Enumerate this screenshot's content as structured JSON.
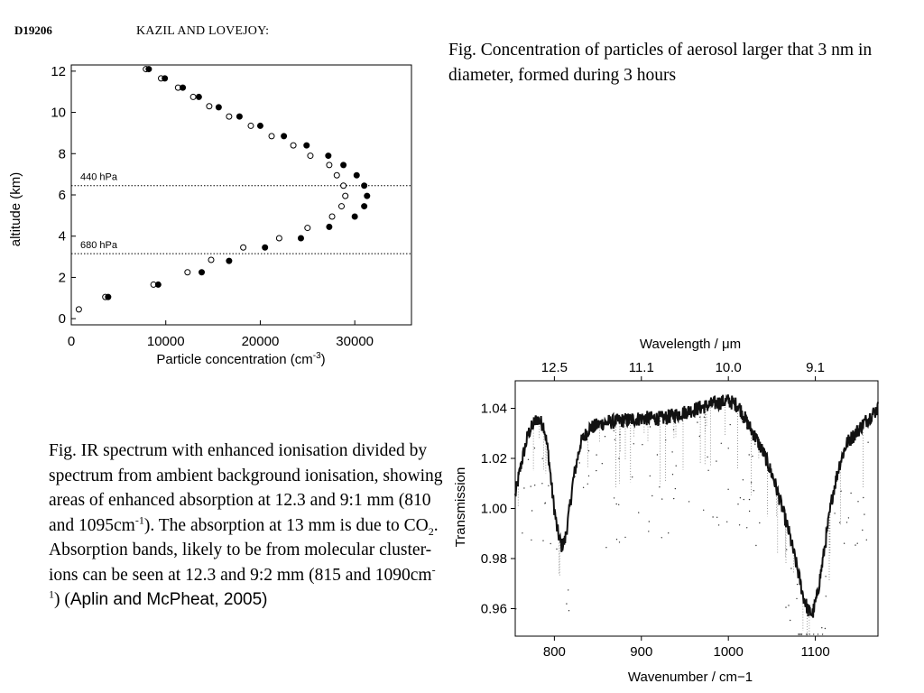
{
  "header": {
    "id": "D19206",
    "authors": "KAZIL AND LOVEJOY:"
  },
  "caption_top": "Fig. Concentration of particles of aerosol larger that 3 nm in diameter, formed during 3 hours",
  "caption_bottom": {
    "t1": "Fig. IR spectrum with enhanced ionisation divided by spectrum from ambient background ionisation, showing areas of enhanced absorption at 12.3 and 9:1 mm (810 and 1095cm",
    "sup1": "-1",
    "t2": "). The absorption at 13 mm is due to CO",
    "sub1": "2",
    "t3": ". Absorption bands, likely to be from molecular cluster-ions can be seen at 12.3 and 9:2 mm (815 and 1090cm",
    "sup2": "-1",
    "t4": ") (",
    "t5": "Aplin and McPheat, 2005)"
  },
  "chart_data": [
    {
      "type": "scatter",
      "xlabel": "Particle concentration (cm",
      "xlabel_sup": "-3",
      "xlabel_end": ")",
      "ylabel": "altitude (km)",
      "xlim": [
        0,
        36000
      ],
      "ylim": [
        -0.3,
        12.3
      ],
      "xticks": [
        0,
        10000,
        20000,
        30000
      ],
      "yticks": [
        0,
        2,
        4,
        6,
        8,
        10,
        12
      ],
      "hlines": [
        {
          "y": 6.45,
          "label": "440 hPa"
        },
        {
          "y": 3.15,
          "label": "680 hPa"
        }
      ],
      "series": [
        {
          "marker": "open",
          "points": [
            [
              800,
              0.45
            ],
            [
              3600,
              1.05
            ],
            [
              8700,
              1.65
            ],
            [
              12300,
              2.25
            ],
            [
              14800,
              2.85
            ],
            [
              18200,
              3.45
            ],
            [
              22000,
              3.9
            ],
            [
              25000,
              4.4
            ],
            [
              27600,
              4.95
            ],
            [
              28600,
              5.45
            ],
            [
              29000,
              5.95
            ],
            [
              28800,
              6.45
            ],
            [
              28100,
              6.95
            ],
            [
              27300,
              7.45
            ],
            [
              25300,
              7.9
            ],
            [
              23500,
              8.4
            ],
            [
              21200,
              8.85
            ],
            [
              19000,
              9.35
            ],
            [
              16700,
              9.8
            ],
            [
              14600,
              10.3
            ],
            [
              12900,
              10.75
            ],
            [
              11300,
              11.2
            ],
            [
              9500,
              11.65
            ],
            [
              7900,
              12.1
            ]
          ]
        },
        {
          "marker": "filled",
          "points": [
            [
              3900,
              1.05
            ],
            [
              9200,
              1.65
            ],
            [
              13800,
              2.25
            ],
            [
              16700,
              2.8
            ],
            [
              20500,
              3.45
            ],
            [
              24300,
              3.9
            ],
            [
              27300,
              4.45
            ],
            [
              30000,
              4.95
            ],
            [
              31000,
              5.45
            ],
            [
              31300,
              5.95
            ],
            [
              31000,
              6.45
            ],
            [
              30200,
              6.95
            ],
            [
              28800,
              7.45
            ],
            [
              27200,
              7.9
            ],
            [
              24900,
              8.4
            ],
            [
              22500,
              8.85
            ],
            [
              20000,
              9.35
            ],
            [
              17800,
              9.8
            ],
            [
              15600,
              10.25
            ],
            [
              13500,
              10.75
            ],
            [
              11800,
              11.2
            ],
            [
              9900,
              11.65
            ],
            [
              8200,
              12.1
            ]
          ]
        }
      ]
    },
    {
      "type": "line",
      "xlabel": "Wavenumber / cm−1",
      "ylabel": "Transmission",
      "top_axis_label": "Wavelength / μm",
      "top_ticks": [
        {
          "label": "12.5",
          "x": 800
        },
        {
          "label": "11.1",
          "x": 900
        },
        {
          "label": "10.0",
          "x": 1000
        },
        {
          "label": "9.1",
          "x": 1100
        }
      ],
      "xlim": [
        755,
        1172
      ],
      "ylim": [
        0.949,
        1.051
      ],
      "xticks": [
        800,
        900,
        1000,
        1100
      ],
      "yticks": [
        0.96,
        0.98,
        1.0,
        1.02,
        1.04
      ],
      "ytick_labels": [
        "0.96",
        "0.98",
        "1.00",
        "1.02",
        "1.04"
      ],
      "envelope": [
        [
          755,
          1.005
        ],
        [
          762,
          1.018
        ],
        [
          770,
          1.03
        ],
        [
          780,
          1.036
        ],
        [
          788,
          1.033
        ],
        [
          793,
          1.022
        ],
        [
          798,
          1.005
        ],
        [
          803,
          0.992
        ],
        [
          808,
          0.985
        ],
        [
          812,
          0.987
        ],
        [
          816,
          0.996
        ],
        [
          822,
          1.012
        ],
        [
          830,
          1.026
        ],
        [
          840,
          1.032
        ],
        [
          855,
          1.034
        ],
        [
          875,
          1.035
        ],
        [
          900,
          1.036
        ],
        [
          925,
          1.036
        ],
        [
          945,
          1.038
        ],
        [
          965,
          1.04
        ],
        [
          985,
          1.042
        ],
        [
          1000,
          1.043
        ],
        [
          1012,
          1.041
        ],
        [
          1022,
          1.034
        ],
        [
          1032,
          1.028
        ],
        [
          1042,
          1.021
        ],
        [
          1052,
          1.012
        ],
        [
          1062,
          1.0
        ],
        [
          1070,
          0.99
        ],
        [
          1078,
          0.978
        ],
        [
          1086,
          0.965
        ],
        [
          1092,
          0.959
        ],
        [
          1097,
          0.958
        ],
        [
          1102,
          0.965
        ],
        [
          1108,
          0.978
        ],
        [
          1114,
          0.992
        ],
        [
          1120,
          1.006
        ],
        [
          1128,
          1.018
        ],
        [
          1136,
          1.026
        ],
        [
          1146,
          1.03
        ],
        [
          1158,
          1.035
        ],
        [
          1172,
          1.04
        ]
      ]
    }
  ]
}
